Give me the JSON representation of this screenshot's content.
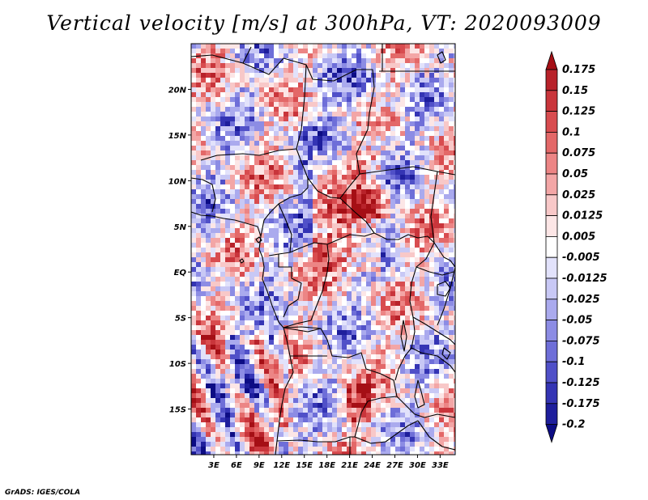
{
  "title": "Vertical velocity [m/s] at 300hPa, VT: 2020093009",
  "credit": "GrADS: IGES/COLA",
  "map": {
    "lon_range": [
      0,
      35
    ],
    "lat_range": [
      -20,
      25
    ],
    "lon_ticks": [
      "3E",
      "6E",
      "9E",
      "12E",
      "15E",
      "18E",
      "21E",
      "24E",
      "27E",
      "30E",
      "33E"
    ],
    "lat_ticks": [
      "20N",
      "15N",
      "10N",
      "5N",
      "EQ",
      "5S",
      "10S",
      "15S"
    ]
  },
  "colorbar": {
    "labels": [
      "0.175",
      "0.15",
      "0.125",
      "0.1",
      "0.075",
      "0.05",
      "0.025",
      "0.0125",
      "0.005",
      "-0.005",
      "-0.0125",
      "-0.025",
      "-0.05",
      "-0.075",
      "-0.1",
      "-0.125",
      "-0.175",
      "-0.2"
    ],
    "colors": [
      "#a50f15",
      "#b8222a",
      "#c9353b",
      "#d84c4f",
      "#e36868",
      "#ec8585",
      "#f3a6a6",
      "#f8c8c8",
      "#fce6e6",
      "#ffffff",
      "#e2e2fb",
      "#c8c8f5",
      "#aaaaee",
      "#8c8ce4",
      "#6e6ed8",
      "#5050c8",
      "#3434b4",
      "#1e1e9c",
      "#0c0c84"
    ]
  },
  "chart_data": {
    "type": "heatmap",
    "title": "Vertical velocity [m/s] at 300hPa, VT: 2020093009",
    "x_ticks": [
      "3E",
      "6E",
      "9E",
      "12E",
      "15E",
      "18E",
      "21E",
      "24E",
      "27E",
      "30E",
      "33E"
    ],
    "y_ticks": [
      "20N",
      "15N",
      "10N",
      "5N",
      "EQ",
      "5S",
      "10S",
      "15S"
    ],
    "legend_values": [
      0.175,
      0.15,
      0.125,
      0.1,
      0.075,
      0.05,
      0.025,
      0.0125,
      0.005,
      -0.005,
      -0.0125,
      -0.025,
      -0.05,
      -0.075,
      -0.1,
      -0.125,
      -0.175,
      -0.2
    ]
  }
}
